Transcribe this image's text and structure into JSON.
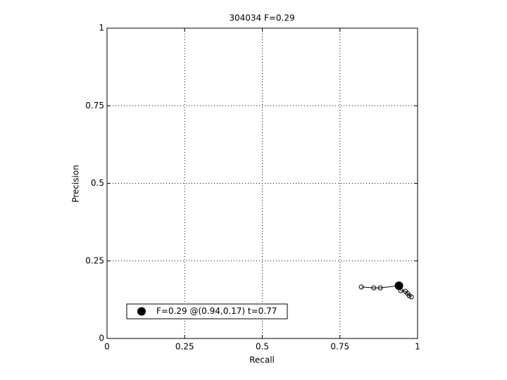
{
  "chart_data": {
    "type": "line",
    "title": "304034 F=0.29",
    "xlabel": "Recall",
    "ylabel": "Precision",
    "xlim": [
      0,
      1
    ],
    "ylim": [
      0,
      1
    ],
    "xticks": [
      0,
      0.25,
      0.5,
      0.75,
      1
    ],
    "yticks": [
      0,
      0.25,
      0.5,
      0.75,
      1
    ],
    "grid": true,
    "legend": "lower left",
    "series": [
      {
        "color": "#000000",
        "marker": "circle",
        "x": [
          0.819,
          0.859,
          0.88,
          0.939,
          0.946,
          0.961,
          0.968,
          0.973,
          0.98
        ],
        "values": [
          0.166,
          0.163,
          0.163,
          0.17,
          0.154,
          0.152,
          0.145,
          0.138,
          0.134
        ]
      },
      {
        "name": "F=0.29 @(0.94,0.17) t=0.77",
        "color": "#000000",
        "marker": "dot",
        "x": [
          0.94
        ],
        "values": [
          0.17
        ]
      }
    ]
  }
}
